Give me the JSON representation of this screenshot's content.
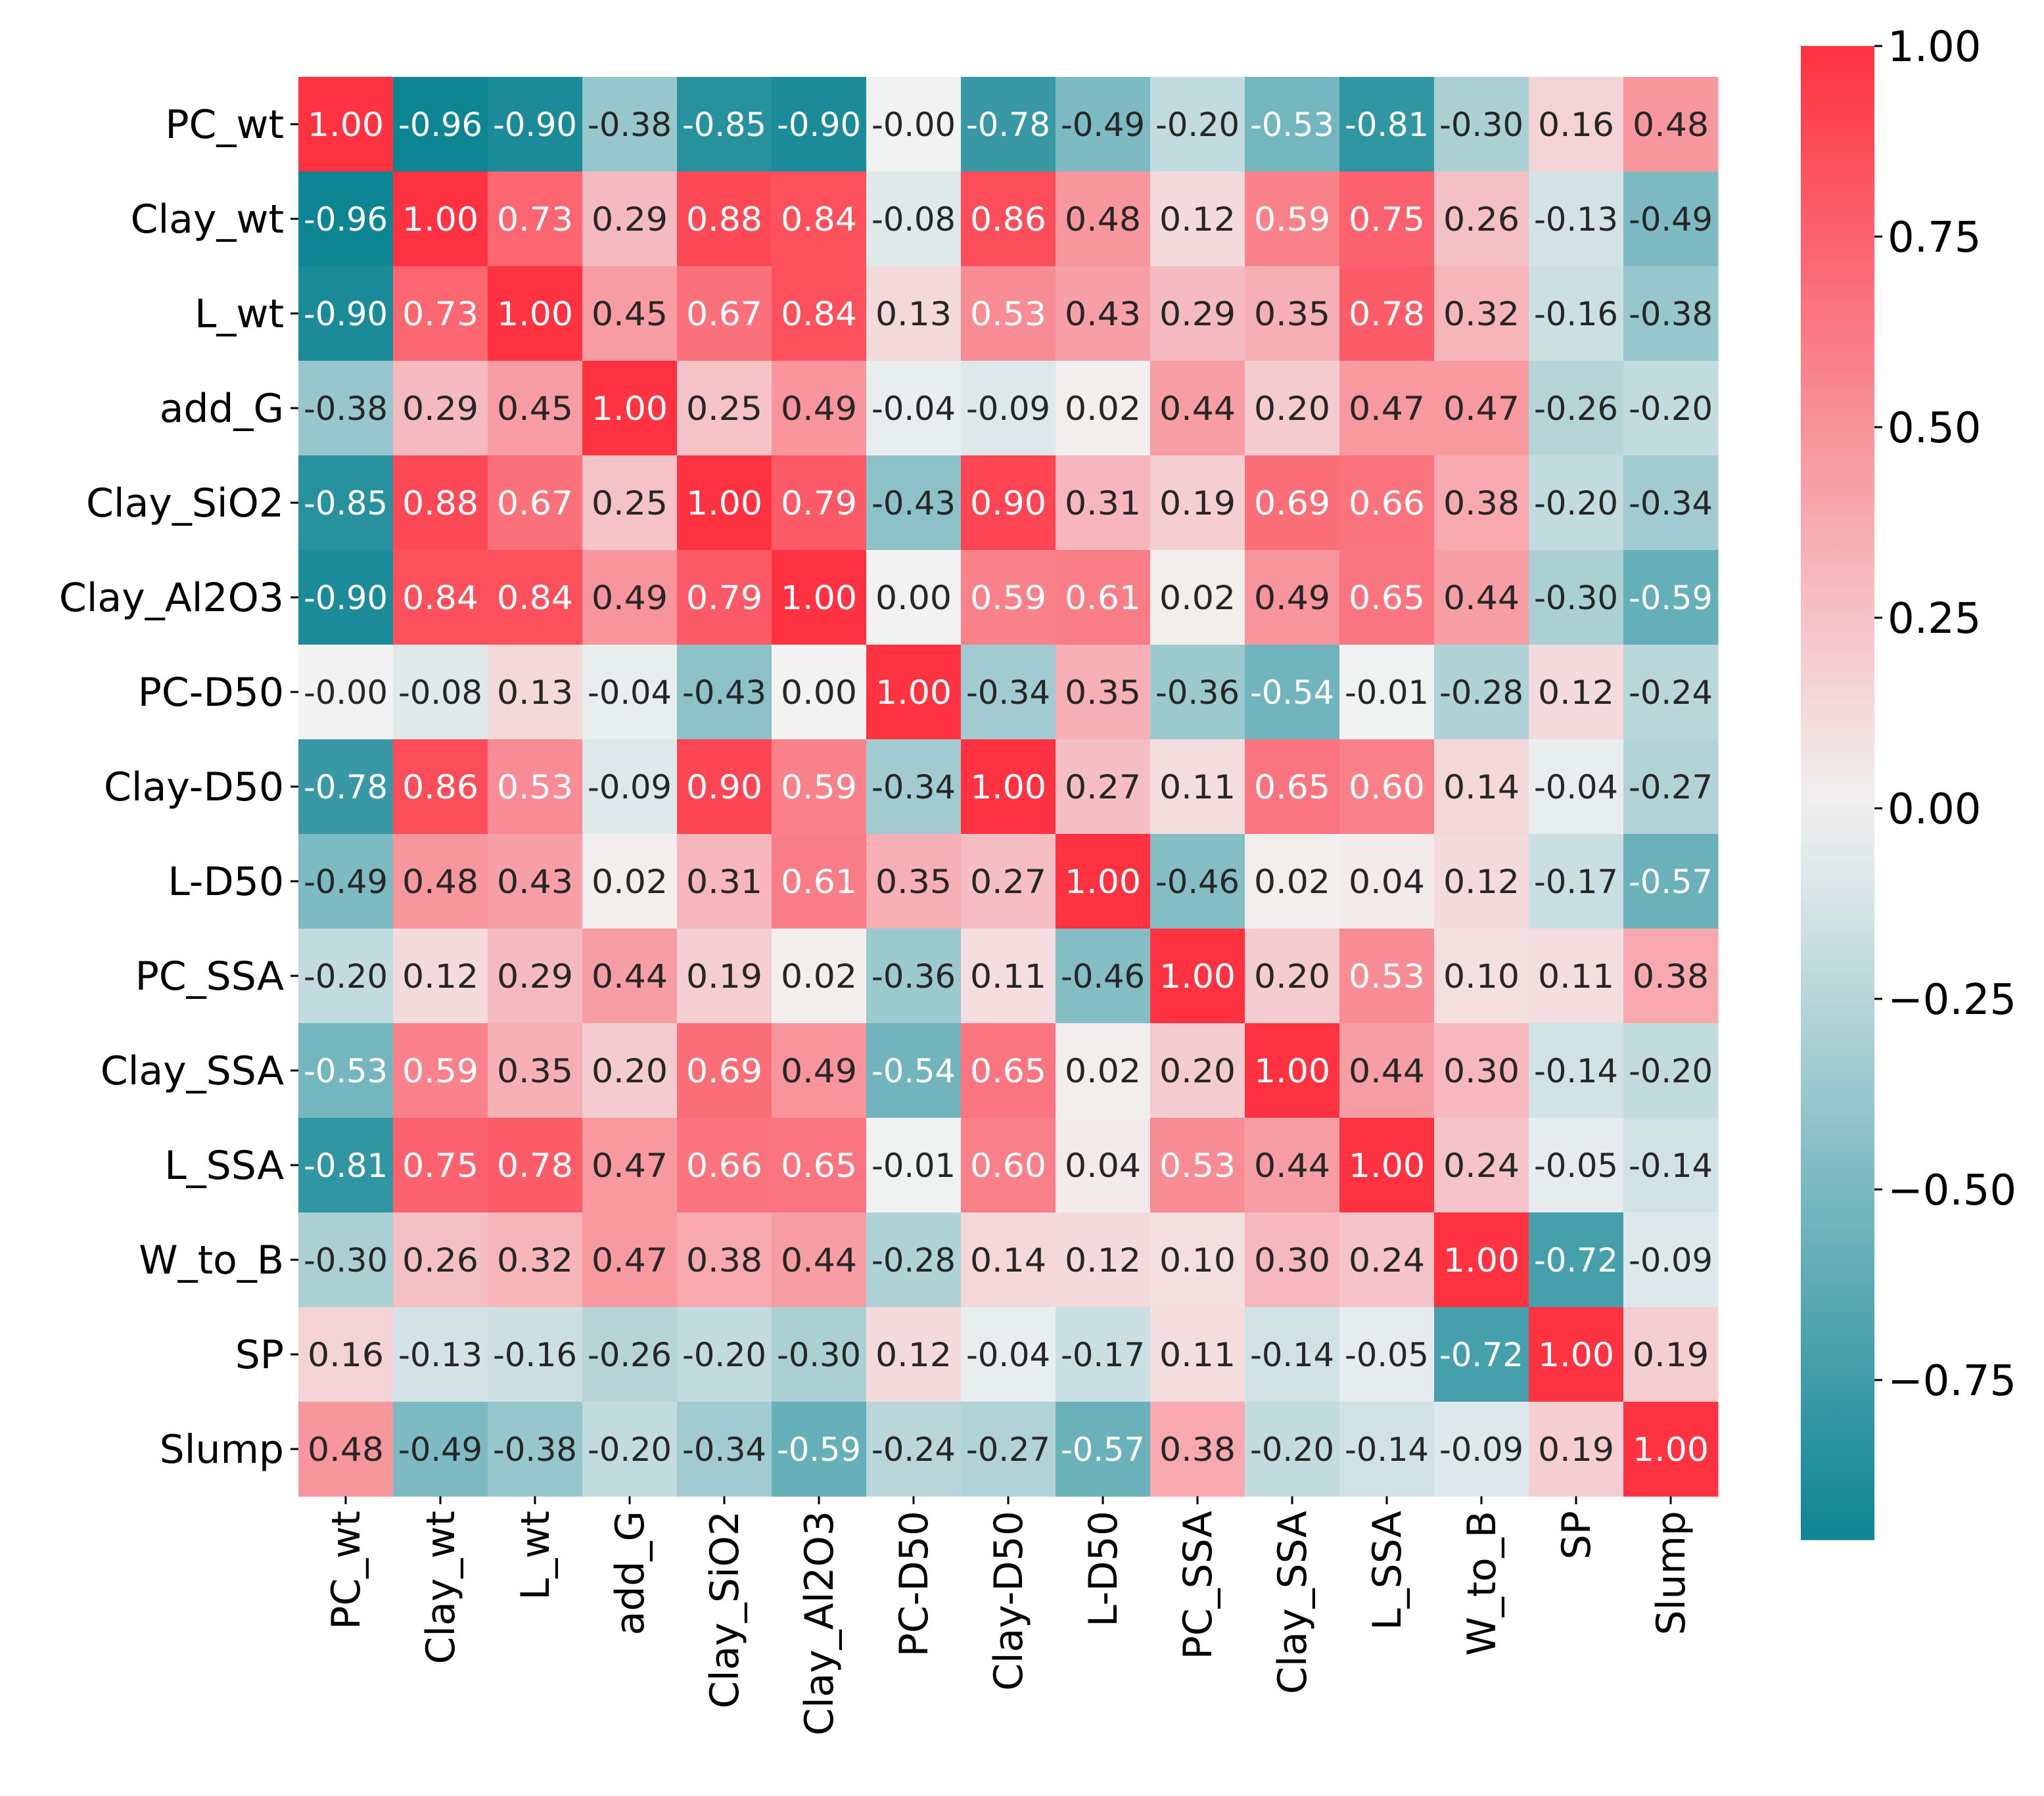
{
  "chart_data": {
    "type": "heatmap",
    "title": "",
    "xlabel": "",
    "ylabel": "",
    "labels": [
      "PC_wt",
      "Clay_wt",
      "L_wt",
      "add_G",
      "Clay_SiO2",
      "Clay_Al2O3",
      "PC-D50",
      "Clay-D50",
      "L-D50",
      "PC_SSA",
      "Clay_SSA",
      "L_SSA",
      "W_to_B",
      "SP",
      "Slump"
    ],
    "values": [
      [
        1.0,
        -0.96,
        -0.9,
        -0.38,
        -0.85,
        -0.9,
        -0.0,
        -0.78,
        -0.49,
        -0.2,
        -0.53,
        -0.81,
        -0.3,
        0.16,
        0.48
      ],
      [
        -0.96,
        1.0,
        0.73,
        0.29,
        0.88,
        0.84,
        -0.08,
        0.86,
        0.48,
        0.12,
        0.59,
        0.75,
        0.26,
        -0.13,
        -0.49
      ],
      [
        -0.9,
        0.73,
        1.0,
        0.45,
        0.67,
        0.84,
        0.13,
        0.53,
        0.43,
        0.29,
        0.35,
        0.78,
        0.32,
        -0.16,
        -0.38
      ],
      [
        -0.38,
        0.29,
        0.45,
        1.0,
        0.25,
        0.49,
        -0.04,
        -0.09,
        0.02,
        0.44,
        0.2,
        0.47,
        0.47,
        -0.26,
        -0.2
      ],
      [
        -0.85,
        0.88,
        0.67,
        0.25,
        1.0,
        0.79,
        -0.43,
        0.9,
        0.31,
        0.19,
        0.69,
        0.66,
        0.38,
        -0.2,
        -0.34
      ],
      [
        -0.9,
        0.84,
        0.84,
        0.49,
        0.79,
        1.0,
        0.0,
        0.59,
        0.61,
        0.02,
        0.49,
        0.65,
        0.44,
        -0.3,
        -0.59
      ],
      [
        -0.0,
        -0.08,
        0.13,
        -0.04,
        -0.43,
        0.0,
        1.0,
        -0.34,
        0.35,
        -0.36,
        -0.54,
        -0.01,
        -0.28,
        0.12,
        -0.24
      ],
      [
        -0.78,
        0.86,
        0.53,
        -0.09,
        0.9,
        0.59,
        -0.34,
        1.0,
        0.27,
        0.11,
        0.65,
        0.6,
        0.14,
        -0.04,
        -0.27
      ],
      [
        -0.49,
        0.48,
        0.43,
        0.02,
        0.31,
        0.61,
        0.35,
        0.27,
        1.0,
        -0.46,
        0.02,
        0.04,
        0.12,
        -0.17,
        -0.57
      ],
      [
        -0.2,
        0.12,
        0.29,
        0.44,
        0.19,
        0.02,
        -0.36,
        0.11,
        -0.46,
        1.0,
        0.2,
        0.53,
        0.1,
        0.11,
        0.38
      ],
      [
        -0.53,
        0.59,
        0.35,
        0.2,
        0.69,
        0.49,
        -0.54,
        0.65,
        0.02,
        0.2,
        1.0,
        0.44,
        0.3,
        -0.14,
        -0.2
      ],
      [
        -0.81,
        0.75,
        0.78,
        0.47,
        0.66,
        0.65,
        -0.01,
        0.6,
        0.04,
        0.53,
        0.44,
        1.0,
        0.24,
        -0.05,
        -0.14
      ],
      [
        -0.3,
        0.26,
        0.32,
        0.47,
        0.38,
        0.44,
        -0.28,
        0.14,
        0.12,
        0.1,
        0.3,
        0.24,
        1.0,
        -0.72,
        -0.09
      ],
      [
        0.16,
        -0.13,
        -0.16,
        -0.26,
        -0.2,
        -0.3,
        0.12,
        -0.04,
        -0.17,
        0.11,
        -0.14,
        -0.05,
        -0.72,
        1.0,
        0.19
      ],
      [
        0.48,
        -0.49,
        -0.38,
        -0.2,
        -0.34,
        -0.59,
        -0.24,
        -0.27,
        -0.57,
        0.38,
        -0.2,
        -0.14,
        -0.09,
        0.19,
        1.0
      ]
    ],
    "annotations": [
      [
        "1.00",
        "-0.96",
        "-0.90",
        "-0.38",
        "-0.85",
        "-0.90",
        "-0.00",
        "-0.78",
        "-0.49",
        "-0.20",
        "-0.53",
        "-0.81",
        "-0.30",
        "0.16",
        "0.48"
      ],
      [
        "-0.96",
        "1.00",
        "0.73",
        "0.29",
        "0.88",
        "0.84",
        "-0.08",
        "0.86",
        "0.48",
        "0.12",
        "0.59",
        "0.75",
        "0.26",
        "-0.13",
        "-0.49"
      ],
      [
        "-0.90",
        "0.73",
        "1.00",
        "0.45",
        "0.67",
        "0.84",
        "0.13",
        "0.53",
        "0.43",
        "0.29",
        "0.35",
        "0.78",
        "0.32",
        "-0.16",
        "-0.38"
      ],
      [
        "-0.38",
        "0.29",
        "0.45",
        "1.00",
        "0.25",
        "0.49",
        "-0.04",
        "-0.09",
        "0.02",
        "0.44",
        "0.20",
        "0.47",
        "0.47",
        "-0.26",
        "-0.20"
      ],
      [
        "-0.85",
        "0.88",
        "0.67",
        "0.25",
        "1.00",
        "0.79",
        "-0.43",
        "0.90",
        "0.31",
        "0.19",
        "0.69",
        "0.66",
        "0.38",
        "-0.20",
        "-0.34"
      ],
      [
        "-0.90",
        "0.84",
        "0.84",
        "0.49",
        "0.79",
        "1.00",
        "0.00",
        "0.59",
        "0.61",
        "0.02",
        "0.49",
        "0.65",
        "0.44",
        "-0.30",
        "-0.59"
      ],
      [
        "-0.00",
        "-0.08",
        "0.13",
        "-0.04",
        "-0.43",
        "0.00",
        "1.00",
        "-0.34",
        "0.35",
        "-0.36",
        "-0.54",
        "-0.01",
        "-0.28",
        "0.12",
        "-0.24"
      ],
      [
        "-0.78",
        "0.86",
        "0.53",
        "-0.09",
        "0.90",
        "0.59",
        "-0.34",
        "1.00",
        "0.27",
        "0.11",
        "0.65",
        "0.60",
        "0.14",
        "-0.04",
        "-0.27"
      ],
      [
        "-0.49",
        "0.48",
        "0.43",
        "0.02",
        "0.31",
        "0.61",
        "0.35",
        "0.27",
        "1.00",
        "-0.46",
        "0.02",
        "0.04",
        "0.12",
        "-0.17",
        "-0.57"
      ],
      [
        "-0.20",
        "0.12",
        "0.29",
        "0.44",
        "0.19",
        "0.02",
        "-0.36",
        "0.11",
        "-0.46",
        "1.00",
        "0.20",
        "0.53",
        "0.10",
        "0.11",
        "0.38"
      ],
      [
        "-0.53",
        "0.59",
        "0.35",
        "0.20",
        "0.69",
        "0.49",
        "-0.54",
        "0.65",
        "0.02",
        "0.20",
        "1.00",
        "0.44",
        "0.30",
        "-0.14",
        "-0.20"
      ],
      [
        "-0.81",
        "0.75",
        "0.78",
        "0.47",
        "0.66",
        "0.65",
        "-0.01",
        "0.60",
        "0.04",
        "0.53",
        "0.44",
        "1.00",
        "0.24",
        "-0.05",
        "-0.14"
      ],
      [
        "-0.30",
        "0.26",
        "0.32",
        "0.47",
        "0.38",
        "0.44",
        "-0.28",
        "0.14",
        "0.12",
        "0.10",
        "0.30",
        "0.24",
        "1.00",
        "-0.72",
        "-0.09"
      ],
      [
        "0.16",
        "-0.13",
        "-0.16",
        "-0.26",
        "-0.20",
        "-0.30",
        "0.12",
        "-0.04",
        "-0.17",
        "0.11",
        "-0.14",
        "-0.05",
        "-0.72",
        "1.00",
        "0.19"
      ],
      [
        "0.48",
        "-0.49",
        "-0.38",
        "-0.20",
        "-0.34",
        "-0.59",
        "-0.24",
        "-0.27",
        "-0.57",
        "0.38",
        "-0.20",
        "-0.14",
        "-0.09",
        "0.19",
        "1.00"
      ]
    ],
    "colorbar": {
      "range": [
        -0.96,
        1.0
      ],
      "ticks": [
        1.0,
        0.75,
        0.5,
        0.25,
        0.0,
        -0.25,
        -0.5,
        -0.75
      ],
      "tick_labels": [
        "1.00",
        "0.75",
        "0.50",
        "0.25",
        "0.00",
        "−0.25",
        "−0.50",
        "−0.75"
      ]
    },
    "colors": {
      "negative": "#03808F",
      "center": "#F2F2F2",
      "positive": "#FE3241"
    },
    "grid": false,
    "legend": "colorbar-right"
  }
}
